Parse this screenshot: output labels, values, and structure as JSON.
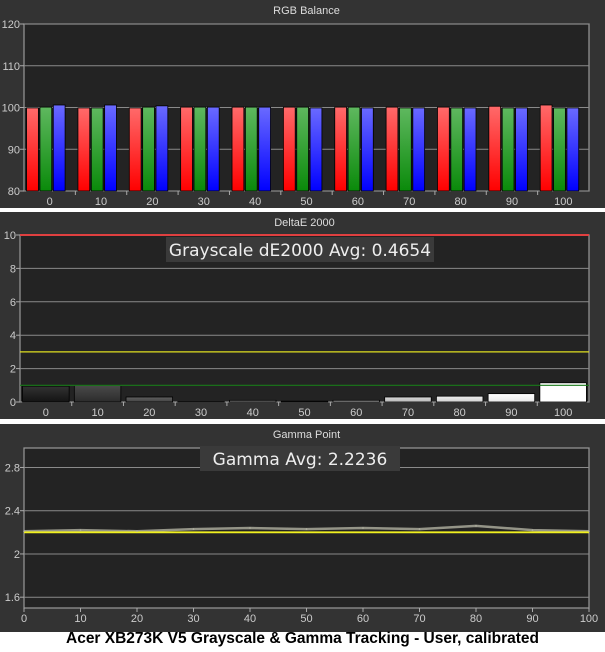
{
  "caption": "Acer XB273K V5 Grayscale & Gamma Tracking - User, calibrated",
  "chart_data": [
    {
      "type": "bar",
      "title": "RGB Balance",
      "categories": [
        "0",
        "10",
        "20",
        "30",
        "40",
        "50",
        "60",
        "70",
        "80",
        "90",
        "100"
      ],
      "ylim": [
        80,
        120
      ],
      "yticks": [
        "80",
        "90",
        "100",
        "110",
        "120"
      ],
      "grid": true,
      "series": [
        {
          "color": "#ff3030",
          "values": [
            99.9,
            99.9,
            99.9,
            100.1,
            100.1,
            100.1,
            100.1,
            100.1,
            100.1,
            100.3,
            100.6
          ]
        },
        {
          "color": "#1e9a1e",
          "values": [
            100.1,
            99.9,
            100.1,
            100.1,
            100.1,
            100.1,
            100.1,
            99.9,
            99.9,
            99.9,
            99.9
          ]
        },
        {
          "color": "#3030ff",
          "values": [
            100.6,
            100.6,
            100.4,
            100.1,
            100.1,
            99.9,
            99.9,
            99.9,
            99.9,
            99.9,
            99.9
          ]
        }
      ]
    },
    {
      "type": "bar",
      "title": "DeltaE 2000",
      "annotation": "Grayscale dE2000 Avg: 0.4654",
      "categories": [
        "0",
        "10",
        "20",
        "30",
        "40",
        "50",
        "60",
        "70",
        "80",
        "90",
        "100"
      ],
      "ylim": [
        0,
        10
      ],
      "yticks": [
        "0",
        "2",
        "4",
        "6",
        "8",
        "10"
      ],
      "grid": true,
      "values": [
        0.95,
        1.0,
        0.3,
        0.02,
        0.1,
        0.05,
        0.1,
        0.3,
        0.35,
        0.5,
        1.15
      ],
      "threshold_lines": [
        {
          "value": 10,
          "color": "#e04040"
        },
        {
          "value": 3,
          "color": "#e0e020"
        },
        {
          "value": 1,
          "color": "#1a7a1a"
        }
      ]
    },
    {
      "type": "line",
      "title": "Gamma Point",
      "annotation": "Gamma Avg: 2.2236",
      "x": [
        0,
        10,
        20,
        30,
        40,
        50,
        60,
        70,
        80,
        90,
        100
      ],
      "y": [
        2.21,
        2.22,
        2.21,
        2.23,
        2.24,
        2.23,
        2.24,
        2.23,
        2.26,
        2.22,
        2.21
      ],
      "target": 2.2,
      "xlim": [
        0,
        100
      ],
      "ylim": [
        1.5,
        2.98
      ],
      "xticks": [
        "0",
        "10",
        "20",
        "30",
        "40",
        "50",
        "60",
        "70",
        "80",
        "90",
        "100"
      ],
      "yticks": [
        "1.6",
        "2",
        "2.4",
        "2.8"
      ],
      "grid": true,
      "line_color": "#b0b0a0",
      "target_color": "#f0f020"
    }
  ]
}
